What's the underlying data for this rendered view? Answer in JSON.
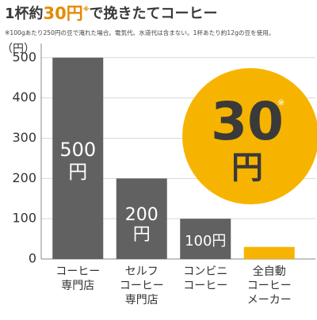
{
  "chart_data": {
    "type": "bar",
    "title": [
      "1杯約",
      "30円",
      "※",
      "で挽きたてコーヒー"
    ],
    "note": "※100gあたり250円の豆で淹れた場合。電気代、水道代は含まない。1杯あたり約12gの豆を使用。",
    "y_unit": "（円）",
    "categories": [
      [
        "コーヒー",
        "専門店"
      ],
      [
        "セルフ",
        "コーヒー",
        "専門店"
      ],
      [
        "コンビニ",
        "コーヒー"
      ],
      [
        "全自動",
        "コーヒー",
        "メーカー"
      ]
    ],
    "values": [
      500,
      200,
      100,
      30
    ],
    "value_labels": [
      [
        "500",
        "円"
      ],
      [
        "200",
        "円"
      ],
      [
        "100円"
      ],
      [
        "30",
        "円"
      ]
    ],
    "highlight_mark": "※",
    "colors": [
      "#616161",
      "#616161",
      "#616161",
      "#f6b400"
    ],
    "ylim": [
      0,
      535
    ],
    "yticks": [
      0,
      100,
      200,
      300,
      400,
      500
    ],
    "grid": true
  }
}
